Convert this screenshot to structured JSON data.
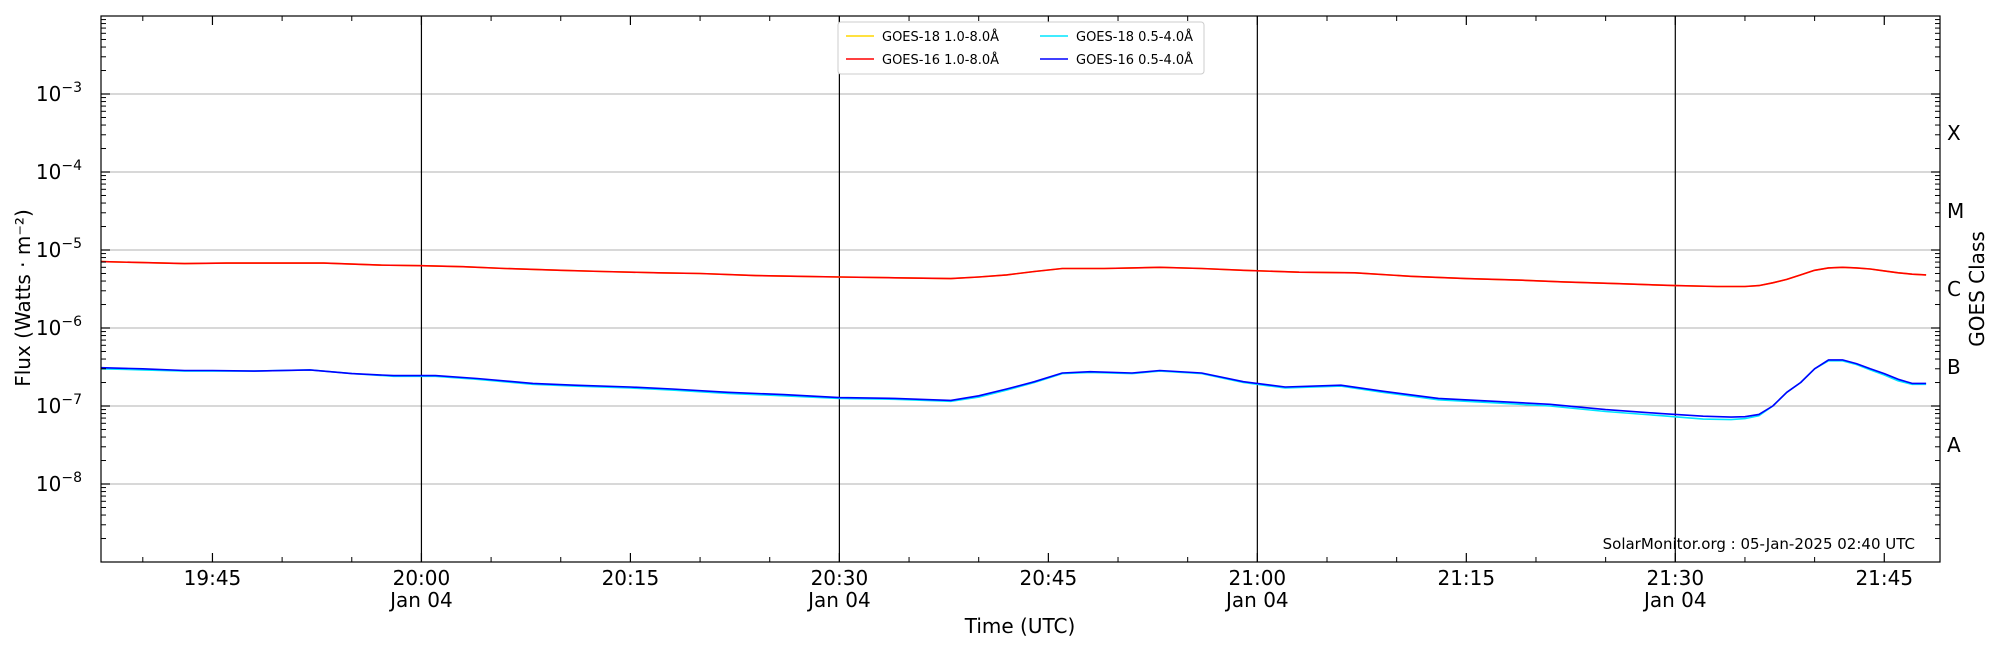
{
  "chart_data": {
    "type": "line",
    "xlabel": "Time (UTC)",
    "ylabel": "Flux (Watts · m⁻²)",
    "y2label": "GOES Class",
    "y_scale": "log",
    "ylim": [
      1e-09,
      0.01
    ],
    "xlim": [
      "2025-01-04 19:37",
      "2025-01-04 21:49"
    ],
    "grid": "horizontal",
    "legend_position": "top-center",
    "watermark": "SolarMonitor.org : 05-Jan-2025 02:40 UTC",
    "x_ticks": [
      {
        "time": "2025-01-04 19:45",
        "label": "19:45",
        "sublabel": ""
      },
      {
        "time": "2025-01-04 20:00",
        "label": "20:00",
        "sublabel": "Jan 04"
      },
      {
        "time": "2025-01-04 20:15",
        "label": "20:15",
        "sublabel": ""
      },
      {
        "time": "2025-01-04 20:30",
        "label": "20:30",
        "sublabel": "Jan 04"
      },
      {
        "time": "2025-01-04 20:45",
        "label": "20:45",
        "sublabel": ""
      },
      {
        "time": "2025-01-04 21:00",
        "label": "21:00",
        "sublabel": "Jan 04"
      },
      {
        "time": "2025-01-04 21:15",
        "label": "21:15",
        "sublabel": ""
      },
      {
        "time": "2025-01-04 21:30",
        "label": "21:30",
        "sublabel": "Jan 04"
      },
      {
        "time": "2025-01-04 21:45",
        "label": "21:45",
        "sublabel": ""
      }
    ],
    "vertical_lines": [
      "2025-01-04 20:00",
      "2025-01-04 20:30",
      "2025-01-04 21:00",
      "2025-01-04 21:30"
    ],
    "y_ticks": [
      {
        "value": 1e-08,
        "base": "10",
        "exp": "−8"
      },
      {
        "value": 1e-07,
        "base": "10",
        "exp": "−7"
      },
      {
        "value": 1e-06,
        "base": "10",
        "exp": "−6"
      },
      {
        "value": 1e-05,
        "base": "10",
        "exp": "−5"
      },
      {
        "value": 0.0001,
        "base": "10",
        "exp": "−4"
      },
      {
        "value": 0.001,
        "base": "10",
        "exp": "−3"
      }
    ],
    "goes_classes": [
      {
        "label": "A",
        "value": 3.16e-08
      },
      {
        "label": "B",
        "value": 3.16e-07
      },
      {
        "label": "C",
        "value": 3.16e-06
      },
      {
        "label": "M",
        "value": 3.16e-05
      },
      {
        "label": "X",
        "value": 0.000316
      }
    ],
    "series": [
      {
        "name": "GOES-18 1.0-8.0Å",
        "color": "#FFD700",
        "x": [
          "2025-01-04 19:37",
          "2025-01-04 19:40",
          "2025-01-04 19:43",
          "2025-01-04 19:46",
          "2025-01-04 19:50",
          "2025-01-04 19:53",
          "2025-01-04 19:57",
          "2025-01-04 20:00",
          "2025-01-04 20:03",
          "2025-01-04 20:06",
          "2025-01-04 20:10",
          "2025-01-04 20:13",
          "2025-01-04 20:17",
          "2025-01-04 20:20",
          "2025-01-04 20:24",
          "2025-01-04 20:27",
          "2025-01-04 20:30",
          "2025-01-04 20:34",
          "2025-01-04 20:38",
          "2025-01-04 20:40",
          "2025-01-04 20:42",
          "2025-01-04 20:44",
          "2025-01-04 20:46",
          "2025-01-04 20:49",
          "2025-01-04 20:51",
          "2025-01-04 20:53",
          "2025-01-04 20:56",
          "2025-01-04 20:59",
          "2025-01-04 21:03",
          "2025-01-04 21:07",
          "2025-01-04 21:11",
          "2025-01-04 21:15",
          "2025-01-04 21:19",
          "2025-01-04 21:22",
          "2025-01-04 21:26",
          "2025-01-04 21:30",
          "2025-01-04 21:33",
          "2025-01-04 21:35",
          "2025-01-04 21:36",
          "2025-01-04 21:37",
          "2025-01-04 21:38",
          "2025-01-04 21:39",
          "2025-01-04 21:40",
          "2025-01-04 21:41",
          "2025-01-04 21:42",
          "2025-01-04 21:43",
          "2025-01-04 21:44",
          "2025-01-04 21:45",
          "2025-01-04 21:46",
          "2025-01-04 21:47",
          "2025-01-04 21:48"
        ],
        "y": [
          7.1e-06,
          6.9e-06,
          6.7e-06,
          6.8e-06,
          6.8e-06,
          6.8e-06,
          6.4e-06,
          6.3e-06,
          6.1e-06,
          5.8e-06,
          5.5e-06,
          5.3e-06,
          5.1e-06,
          5e-06,
          4.7e-06,
          4.6e-06,
          4.5e-06,
          4.4e-06,
          4.3e-06,
          4.5e-06,
          4.8e-06,
          5.3e-06,
          5.8e-06,
          5.8e-06,
          5.9e-06,
          6e-06,
          5.8e-06,
          5.5e-06,
          5.2e-06,
          5.1e-06,
          4.6e-06,
          4.3e-06,
          4.1e-06,
          3.9e-06,
          3.7e-06,
          3.5e-06,
          3.4e-06,
          3.4e-06,
          3.5e-06,
          3.8e-06,
          4.2e-06,
          4.8e-06,
          5.5e-06,
          5.9e-06,
          6e-06,
          5.9e-06,
          5.7e-06,
          5.4e-06,
          5.1e-06,
          4.9e-06,
          4.8e-06
        ]
      },
      {
        "name": "GOES-16 1.0-8.0Å",
        "color": "#FF0000",
        "x": [
          "2025-01-04 19:37",
          "2025-01-04 19:40",
          "2025-01-04 19:43",
          "2025-01-04 19:46",
          "2025-01-04 19:50",
          "2025-01-04 19:53",
          "2025-01-04 19:57",
          "2025-01-04 20:00",
          "2025-01-04 20:03",
          "2025-01-04 20:06",
          "2025-01-04 20:10",
          "2025-01-04 20:13",
          "2025-01-04 20:17",
          "2025-01-04 20:20",
          "2025-01-04 20:24",
          "2025-01-04 20:27",
          "2025-01-04 20:30",
          "2025-01-04 20:34",
          "2025-01-04 20:38",
          "2025-01-04 20:40",
          "2025-01-04 20:42",
          "2025-01-04 20:44",
          "2025-01-04 20:46",
          "2025-01-04 20:49",
          "2025-01-04 20:51",
          "2025-01-04 20:53",
          "2025-01-04 20:56",
          "2025-01-04 20:59",
          "2025-01-04 21:03",
          "2025-01-04 21:07",
          "2025-01-04 21:11",
          "2025-01-04 21:15",
          "2025-01-04 21:19",
          "2025-01-04 21:22",
          "2025-01-04 21:26",
          "2025-01-04 21:30",
          "2025-01-04 21:33",
          "2025-01-04 21:35",
          "2025-01-04 21:36",
          "2025-01-04 21:37",
          "2025-01-04 21:38",
          "2025-01-04 21:39",
          "2025-01-04 21:40",
          "2025-01-04 21:41",
          "2025-01-04 21:42",
          "2025-01-04 21:43",
          "2025-01-04 21:44",
          "2025-01-04 21:45",
          "2025-01-04 21:46",
          "2025-01-04 21:47",
          "2025-01-04 21:48"
        ],
        "y": [
          7.1e-06,
          6.9e-06,
          6.7e-06,
          6.8e-06,
          6.8e-06,
          6.8e-06,
          6.4e-06,
          6.3e-06,
          6.1e-06,
          5.8e-06,
          5.5e-06,
          5.3e-06,
          5.1e-06,
          5e-06,
          4.7e-06,
          4.6e-06,
          4.5e-06,
          4.4e-06,
          4.3e-06,
          4.5e-06,
          4.8e-06,
          5.3e-06,
          5.8e-06,
          5.8e-06,
          5.9e-06,
          6e-06,
          5.8e-06,
          5.5e-06,
          5.2e-06,
          5.1e-06,
          4.6e-06,
          4.3e-06,
          4.1e-06,
          3.9e-06,
          3.7e-06,
          3.5e-06,
          3.4e-06,
          3.4e-06,
          3.5e-06,
          3.8e-06,
          4.2e-06,
          4.8e-06,
          5.5e-06,
          5.9e-06,
          6e-06,
          5.9e-06,
          5.7e-06,
          5.4e-06,
          5.1e-06,
          4.9e-06,
          4.8e-06
        ]
      },
      {
        "name": "GOES-18 0.5-4.0Å",
        "color": "#00E5FF",
        "x": [
          "2025-01-04 19:37",
          "2025-01-04 19:40",
          "2025-01-04 19:43",
          "2025-01-04 19:45",
          "2025-01-04 19:48",
          "2025-01-04 19:52",
          "2025-01-04 19:55",
          "2025-01-04 19:58",
          "2025-01-04 20:01",
          "2025-01-04 20:04",
          "2025-01-04 20:08",
          "2025-01-04 20:11",
          "2025-01-04 20:15",
          "2025-01-04 20:18",
          "2025-01-04 20:22",
          "2025-01-04 20:26",
          "2025-01-04 20:30",
          "2025-01-04 20:34",
          "2025-01-04 20:38",
          "2025-01-04 20:40",
          "2025-01-04 20:42",
          "2025-01-04 20:44",
          "2025-01-04 20:46",
          "2025-01-04 20:48",
          "2025-01-04 20:51",
          "2025-01-04 20:53",
          "2025-01-04 20:56",
          "2025-01-04 20:59",
          "2025-01-04 21:02",
          "2025-01-04 21:06",
          "2025-01-04 21:09",
          "2025-01-04 21:13",
          "2025-01-04 21:17",
          "2025-01-04 21:21",
          "2025-01-04 21:25",
          "2025-01-04 21:29",
          "2025-01-04 21:32",
          "2025-01-04 21:34",
          "2025-01-04 21:35",
          "2025-01-04 21:36",
          "2025-01-04 21:37",
          "2025-01-04 21:38",
          "2025-01-04 21:39",
          "2025-01-04 21:40",
          "2025-01-04 21:41",
          "2025-01-04 21:42",
          "2025-01-04 21:43",
          "2025-01-04 21:44",
          "2025-01-04 21:45",
          "2025-01-04 21:46",
          "2025-01-04 21:47",
          "2025-01-04 21:48"
        ],
        "y": [
          3e-07,
          2.9e-07,
          2.8e-07,
          2.8e-07,
          2.8e-07,
          2.9e-07,
          2.6e-07,
          2.4e-07,
          2.4e-07,
          2.2e-07,
          1.9e-07,
          1.8e-07,
          1.7e-07,
          1.6e-07,
          1.45e-07,
          1.35e-07,
          1.25e-07,
          1.22e-07,
          1.15e-07,
          1.3e-07,
          1.6e-07,
          2e-07,
          2.6e-07,
          2.7e-07,
          2.6e-07,
          2.8e-07,
          2.6e-07,
          2e-07,
          1.7e-07,
          1.8e-07,
          1.5e-07,
          1.2e-07,
          1.1e-07,
          1e-07,
          8.5e-08,
          7.5e-08,
          6.8e-08,
          6.7e-08,
          6.9e-08,
          7.5e-08,
          1e-07,
          1.5e-07,
          2e-07,
          3e-07,
          3.8e-07,
          3.8e-07,
          3.4e-07,
          2.9e-07,
          2.5e-07,
          2.1e-07,
          1.9e-07,
          1.9e-07
        ]
      },
      {
        "name": "GOES-16 0.5-4.0Å",
        "color": "#0000FF",
        "x": [
          "2025-01-04 19:37",
          "2025-01-04 19:40",
          "2025-01-04 19:43",
          "2025-01-04 19:45",
          "2025-01-04 19:48",
          "2025-01-04 19:52",
          "2025-01-04 19:55",
          "2025-01-04 19:58",
          "2025-01-04 20:01",
          "2025-01-04 20:04",
          "2025-01-04 20:08",
          "2025-01-04 20:11",
          "2025-01-04 20:15",
          "2025-01-04 20:18",
          "2025-01-04 20:22",
          "2025-01-04 20:26",
          "2025-01-04 20:30",
          "2025-01-04 20:34",
          "2025-01-04 20:38",
          "2025-01-04 20:40",
          "2025-01-04 20:42",
          "2025-01-04 20:44",
          "2025-01-04 20:46",
          "2025-01-04 20:48",
          "2025-01-04 20:51",
          "2025-01-04 20:53",
          "2025-01-04 20:56",
          "2025-01-04 20:59",
          "2025-01-04 21:02",
          "2025-01-04 21:06",
          "2025-01-04 21:09",
          "2025-01-04 21:13",
          "2025-01-04 21:17",
          "2025-01-04 21:21",
          "2025-01-04 21:25",
          "2025-01-04 21:29",
          "2025-01-04 21:32",
          "2025-01-04 21:34",
          "2025-01-04 21:35",
          "2025-01-04 21:36",
          "2025-01-04 21:37",
          "2025-01-04 21:38",
          "2025-01-04 21:39",
          "2025-01-04 21:40",
          "2025-01-04 21:41",
          "2025-01-04 21:42",
          "2025-01-04 21:43",
          "2025-01-04 21:44",
          "2025-01-04 21:45",
          "2025-01-04 21:46",
          "2025-01-04 21:47",
          "2025-01-04 21:48"
        ],
        "y": [
          3.1e-07,
          3e-07,
          2.85e-07,
          2.85e-07,
          2.8e-07,
          2.9e-07,
          2.6e-07,
          2.45e-07,
          2.45e-07,
          2.25e-07,
          1.95e-07,
          1.85e-07,
          1.75e-07,
          1.65e-07,
          1.5e-07,
          1.4e-07,
          1.28e-07,
          1.25e-07,
          1.18e-07,
          1.35e-07,
          1.65e-07,
          2.05e-07,
          2.65e-07,
          2.75e-07,
          2.65e-07,
          2.85e-07,
          2.65e-07,
          2.05e-07,
          1.75e-07,
          1.85e-07,
          1.55e-07,
          1.25e-07,
          1.15e-07,
          1.05e-07,
          9e-08,
          8e-08,
          7.4e-08,
          7.2e-08,
          7.3e-08,
          7.8e-08,
          1e-07,
          1.5e-07,
          2e-07,
          3e-07,
          3.9e-07,
          3.9e-07,
          3.5e-07,
          3e-07,
          2.6e-07,
          2.2e-07,
          1.95e-07,
          1.95e-07
        ]
      }
    ]
  }
}
